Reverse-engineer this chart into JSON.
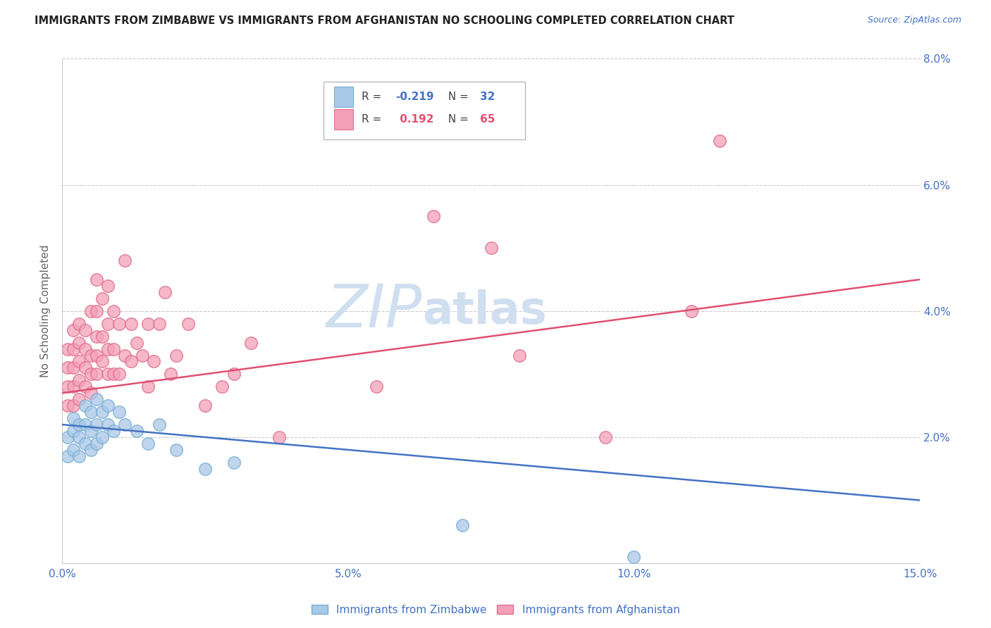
{
  "title": "IMMIGRANTS FROM ZIMBABWE VS IMMIGRANTS FROM AFGHANISTAN NO SCHOOLING COMPLETED CORRELATION CHART",
  "source": "Source: ZipAtlas.com",
  "ylabel": "No Schooling Completed",
  "xlim": [
    0.0,
    0.15
  ],
  "ylim": [
    0.0,
    0.08
  ],
  "xticks": [
    0.0,
    0.05,
    0.1,
    0.15
  ],
  "xtick_labels": [
    "0.0%",
    "5.0%",
    "10.0%",
    "15.0%"
  ],
  "yticks": [
    0.0,
    0.02,
    0.04,
    0.06,
    0.08
  ],
  "ytick_labels_right": [
    "",
    "2.0%",
    "4.0%",
    "6.0%",
    "8.0%"
  ],
  "legend_R_blue": "-0.219",
  "legend_N_blue": "32",
  "legend_R_pink": "0.192",
  "legend_N_pink": "65",
  "legend_label_blue": "Immigrants from Zimbabwe",
  "legend_label_pink": "Immigrants from Afghanistan",
  "blue_color": "#a8c8e8",
  "pink_color": "#f4a0b8",
  "blue_edge_color": "#7aafd4",
  "pink_edge_color": "#e07090",
  "blue_line_color": "#4472c4",
  "pink_line_color": "#e05070",
  "watermark_zip": "ZIP",
  "watermark_atlas": "atlas",
  "watermark_color": "#d0dff0",
  "tick_color": "#4472c4",
  "blue_line_start_y": 0.022,
  "blue_line_end_y": 0.01,
  "pink_line_start_y": 0.027,
  "pink_line_end_y": 0.045,
  "blue_x": [
    0.001,
    0.001,
    0.002,
    0.002,
    0.002,
    0.003,
    0.003,
    0.003,
    0.004,
    0.004,
    0.004,
    0.005,
    0.005,
    0.005,
    0.006,
    0.006,
    0.006,
    0.007,
    0.007,
    0.008,
    0.008,
    0.009,
    0.01,
    0.011,
    0.013,
    0.015,
    0.017,
    0.02,
    0.025,
    0.03,
    0.07,
    0.1
  ],
  "blue_y": [
    0.017,
    0.02,
    0.018,
    0.021,
    0.023,
    0.017,
    0.02,
    0.022,
    0.019,
    0.022,
    0.025,
    0.018,
    0.021,
    0.024,
    0.019,
    0.022,
    0.026,
    0.02,
    0.024,
    0.022,
    0.025,
    0.021,
    0.024,
    0.022,
    0.021,
    0.019,
    0.022,
    0.018,
    0.015,
    0.016,
    0.006,
    0.001
  ],
  "pink_x": [
    0.001,
    0.001,
    0.001,
    0.001,
    0.002,
    0.002,
    0.002,
    0.002,
    0.002,
    0.003,
    0.003,
    0.003,
    0.003,
    0.003,
    0.004,
    0.004,
    0.004,
    0.004,
    0.005,
    0.005,
    0.005,
    0.005,
    0.006,
    0.006,
    0.006,
    0.006,
    0.006,
    0.007,
    0.007,
    0.007,
    0.008,
    0.008,
    0.008,
    0.008,
    0.009,
    0.009,
    0.009,
    0.01,
    0.01,
    0.011,
    0.011,
    0.012,
    0.012,
    0.013,
    0.014,
    0.015,
    0.015,
    0.016,
    0.017,
    0.018,
    0.019,
    0.02,
    0.022,
    0.025,
    0.028,
    0.03,
    0.033,
    0.038,
    0.055,
    0.065,
    0.075,
    0.08,
    0.095,
    0.11,
    0.115
  ],
  "pink_y": [
    0.025,
    0.028,
    0.031,
    0.034,
    0.025,
    0.028,
    0.031,
    0.034,
    0.037,
    0.026,
    0.029,
    0.032,
    0.035,
    0.038,
    0.028,
    0.031,
    0.034,
    0.037,
    0.027,
    0.03,
    0.033,
    0.04,
    0.03,
    0.033,
    0.036,
    0.04,
    0.045,
    0.032,
    0.036,
    0.042,
    0.03,
    0.034,
    0.038,
    0.044,
    0.03,
    0.034,
    0.04,
    0.03,
    0.038,
    0.033,
    0.048,
    0.032,
    0.038,
    0.035,
    0.033,
    0.028,
    0.038,
    0.032,
    0.038,
    0.043,
    0.03,
    0.033,
    0.038,
    0.025,
    0.028,
    0.03,
    0.035,
    0.02,
    0.028,
    0.055,
    0.05,
    0.033,
    0.02,
    0.04,
    0.067
  ]
}
